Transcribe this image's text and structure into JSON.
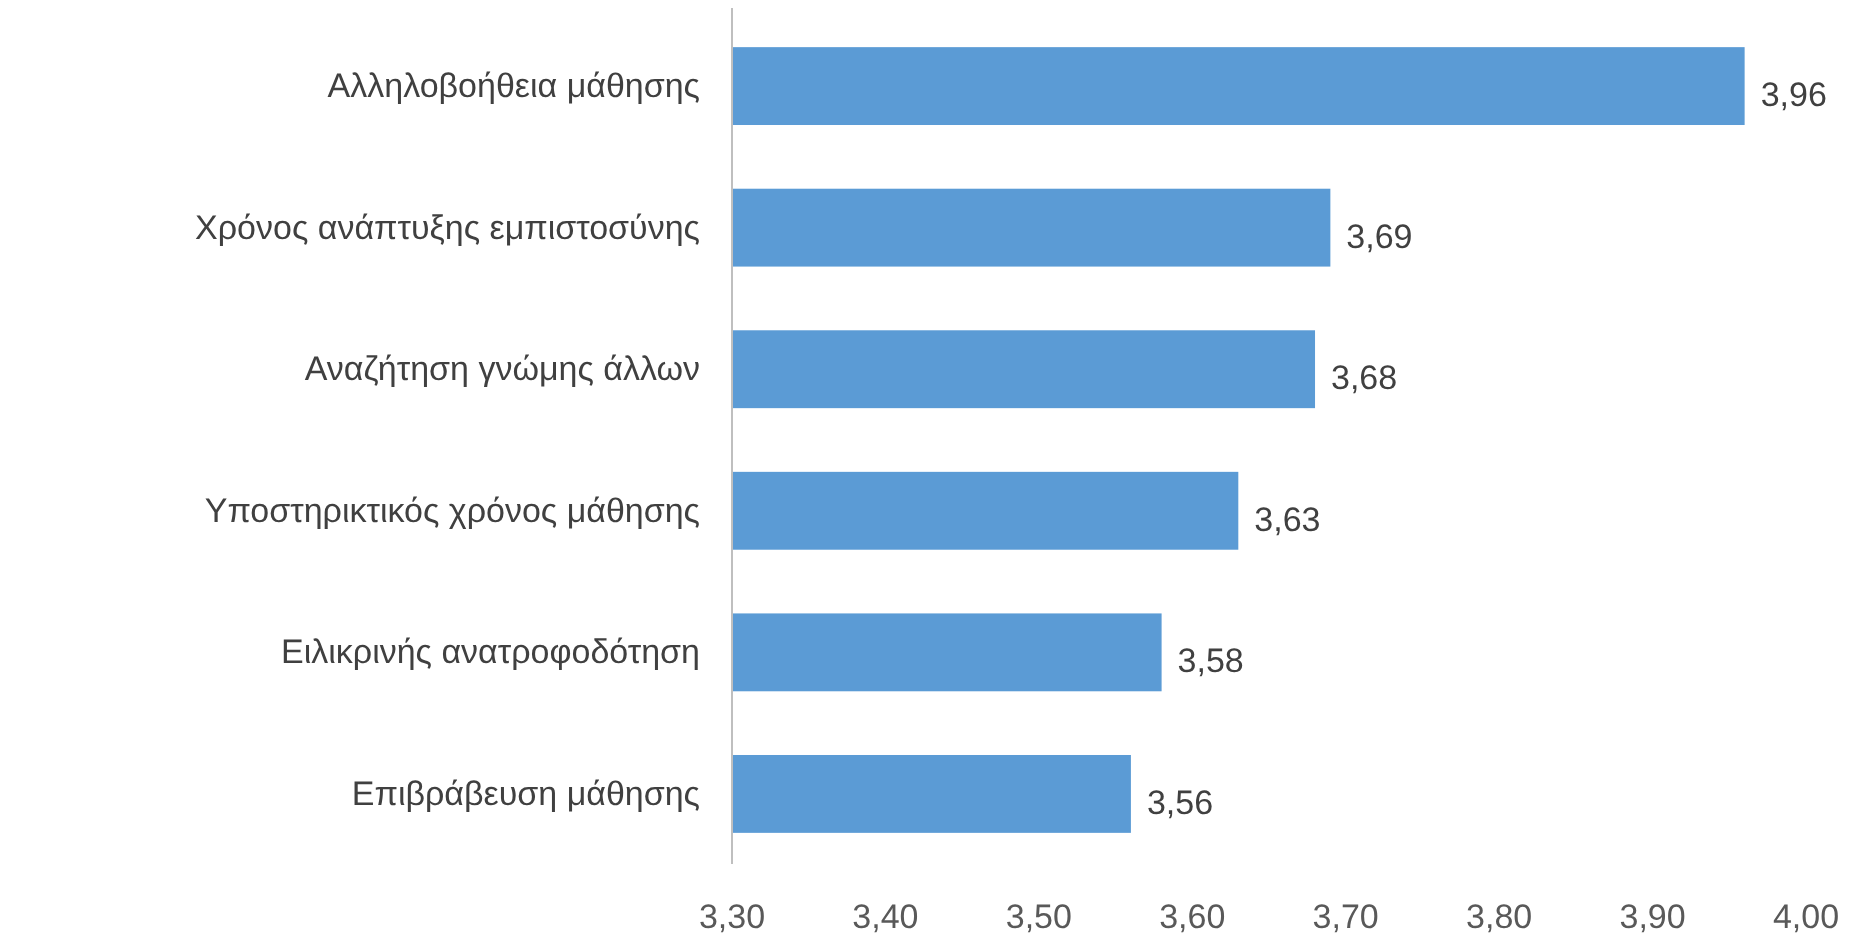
{
  "chart_data": {
    "type": "bar",
    "orientation": "horizontal",
    "categories": [
      "Αλληλοβοήθεια μάθησης",
      "Χρόνος ανάπτυξης εμπιστοσύνης",
      "Αναζήτηση γνώμης άλλων",
      "Υποστηρικτικός χρόνος μάθησης",
      "Ειλικρινής ανατροφοδότηση",
      "Επιβράβευση μάθησης"
    ],
    "values": [
      3.96,
      3.69,
      3.68,
      3.63,
      3.58,
      3.56
    ],
    "value_labels": [
      "3,96",
      "3,69",
      "3,68",
      "3,63",
      "3,58",
      "3,56"
    ],
    "color": "#5b9bd5",
    "xlim": [
      3.3,
      4.0
    ],
    "xticks": [
      {
        "value": 3.3,
        "label": "3,30"
      },
      {
        "value": 3.4,
        "label": "3,40"
      },
      {
        "value": 3.5,
        "label": "3,50"
      },
      {
        "value": 3.6,
        "label": "3,60"
      },
      {
        "value": 3.7,
        "label": "3,70"
      },
      {
        "value": 3.8,
        "label": "3,80"
      },
      {
        "value": 3.9,
        "label": "3,90"
      },
      {
        "value": 4.0,
        "label": "4,00"
      }
    ],
    "grid": false
  }
}
